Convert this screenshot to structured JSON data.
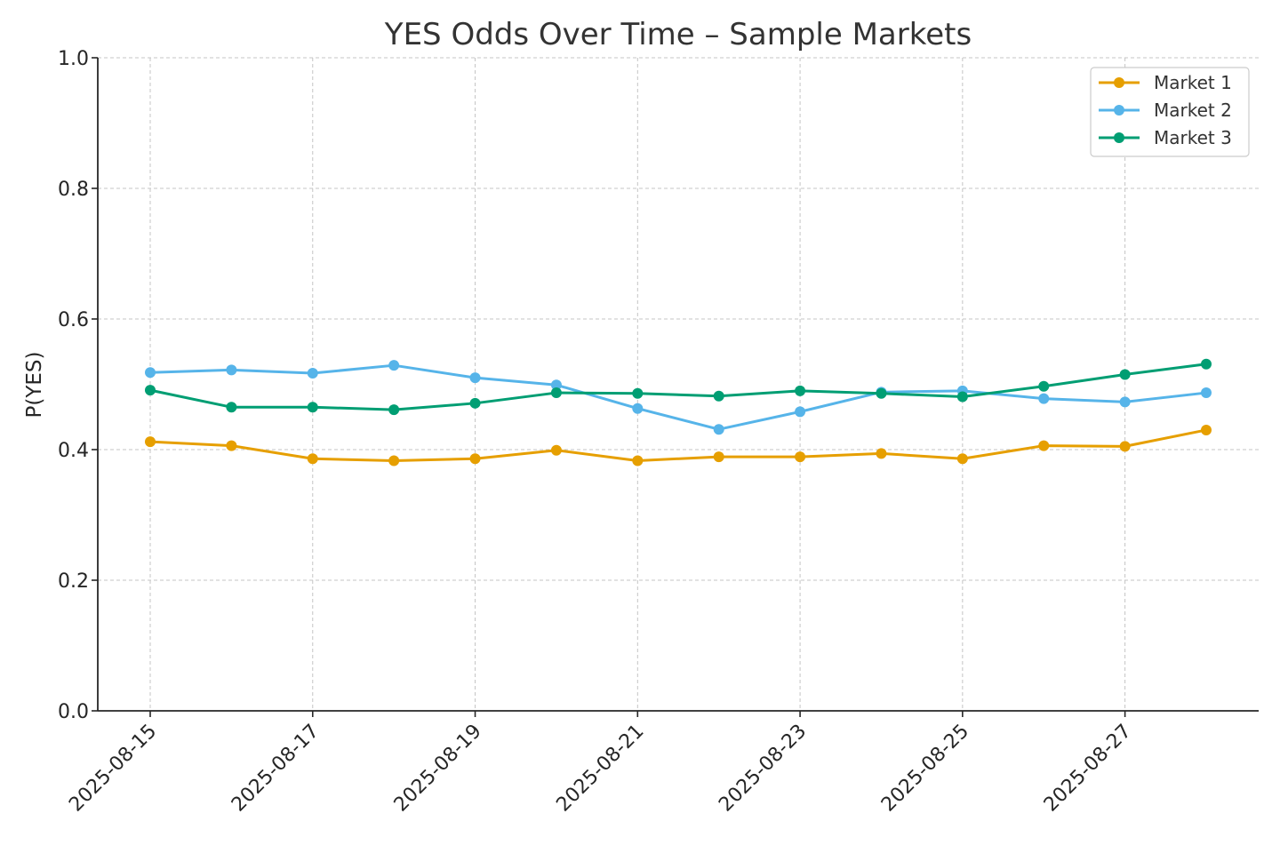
{
  "chart_data": {
    "type": "line",
    "title": "YES Odds Over Time – Sample Markets",
    "xlabel": "",
    "ylabel": "P(YES)",
    "ylim": [
      0.0,
      1.0
    ],
    "yticks": [
      "0.0",
      "0.2",
      "0.4",
      "0.6",
      "0.8",
      "1.0"
    ],
    "x": [
      "2025-08-15",
      "2025-08-16",
      "2025-08-17",
      "2025-08-18",
      "2025-08-19",
      "2025-08-20",
      "2025-08-21",
      "2025-08-22",
      "2025-08-23",
      "2025-08-24",
      "2025-08-25",
      "2025-08-26",
      "2025-08-27",
      "2025-08-28"
    ],
    "xticks": [
      "2025-08-15",
      "2025-08-17",
      "2025-08-19",
      "2025-08-21",
      "2025-08-23",
      "2025-08-25",
      "2025-08-27"
    ],
    "grid": true,
    "legend_position": "top-right",
    "series": [
      {
        "name": "Market 1",
        "color": "#E69F00",
        "values": [
          0.412,
          0.406,
          0.386,
          0.383,
          0.386,
          0.399,
          0.383,
          0.389,
          0.389,
          0.394,
          0.386,
          0.406,
          0.405,
          0.43
        ]
      },
      {
        "name": "Market 2",
        "color": "#56B4E9",
        "values": [
          0.518,
          0.522,
          0.517,
          0.529,
          0.51,
          0.499,
          0.463,
          0.431,
          0.458,
          0.488,
          0.49,
          0.478,
          0.473,
          0.487
        ]
      },
      {
        "name": "Market 3",
        "color": "#009E73",
        "values": [
          0.491,
          0.465,
          0.465,
          0.461,
          0.471,
          0.487,
          0.486,
          0.482,
          0.49,
          0.486,
          0.481,
          0.497,
          0.515,
          0.531
        ]
      }
    ]
  }
}
